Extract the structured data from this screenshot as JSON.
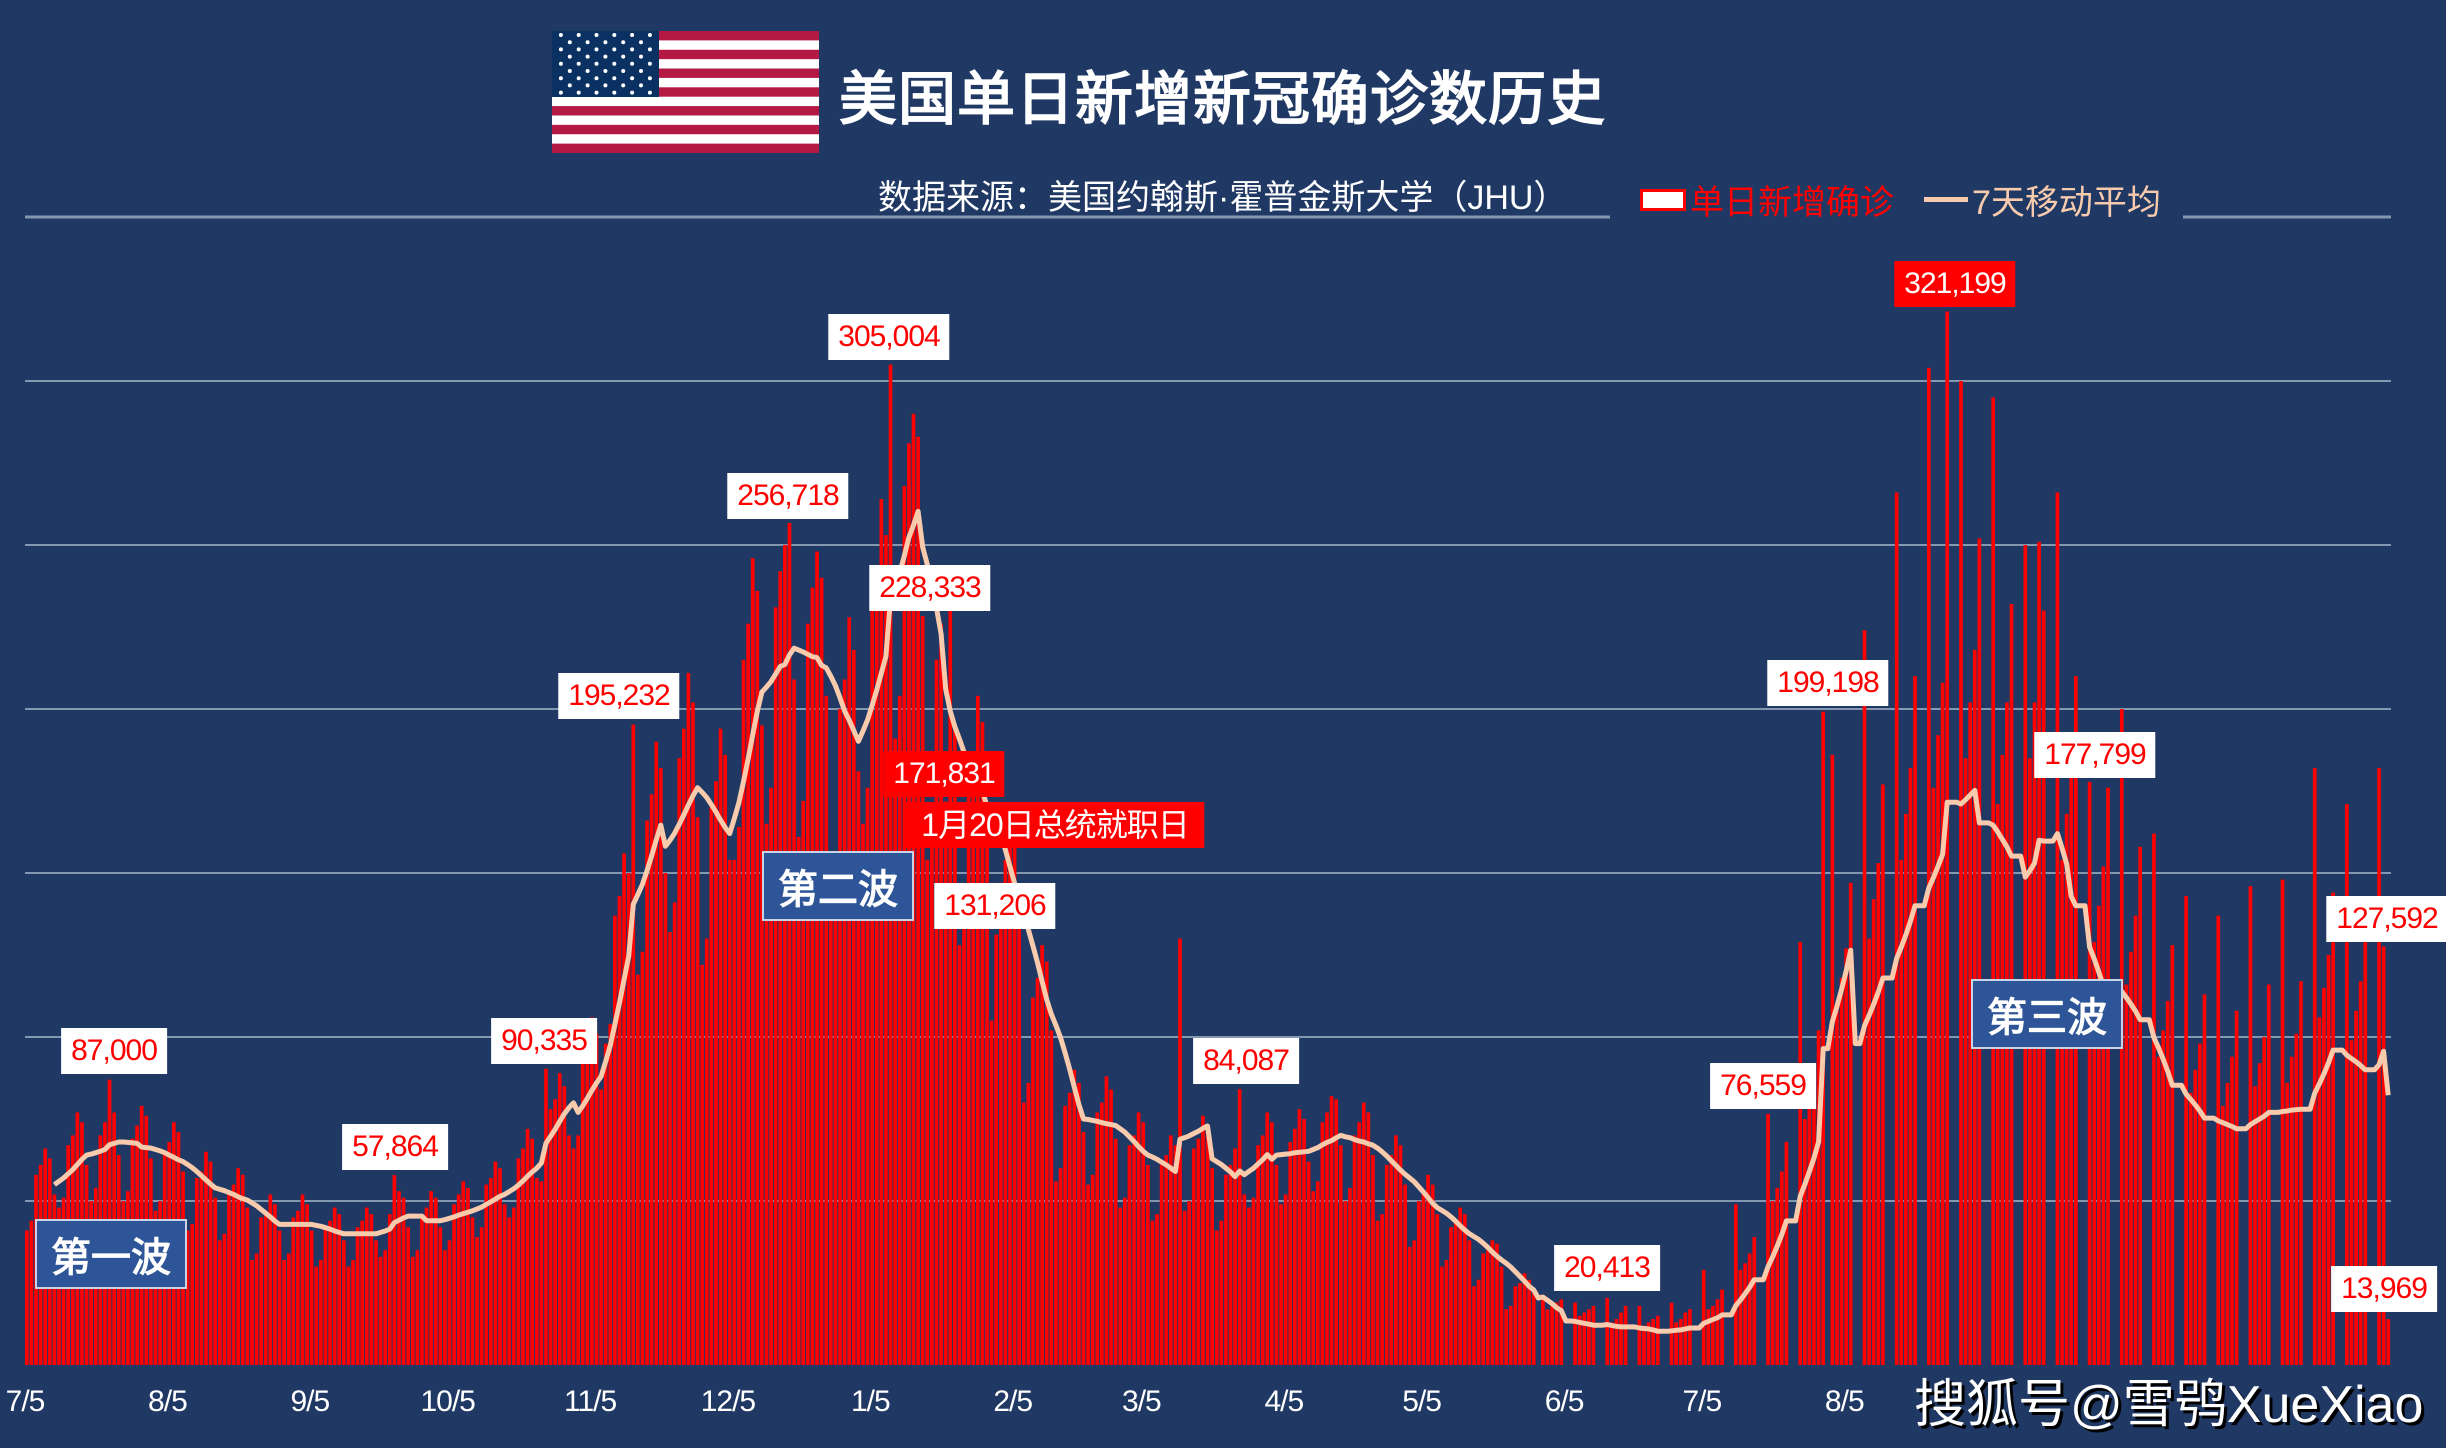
{
  "title": "美国单日新增新冠确诊数历史",
  "subtitle": "数据来源：美国约翰斯·霍普金斯大学（JHU）",
  "watermark": "搜狐号@雪鸮XueXiao",
  "flag": "us-flag",
  "colors": {
    "background": "#203864",
    "bars": "#ff0000",
    "moving_average": "#f8cbad",
    "grid": "#8497b0",
    "wave_box": "#2e5597"
  },
  "chart_data": {
    "type": "bar",
    "title": "美国单日新增新冠确诊数历史",
    "legend": {
      "position": "top-right",
      "items": [
        {
          "name": "单日新增确诊",
          "kind": "bar"
        },
        {
          "name": "7天移动平均",
          "kind": "line"
        }
      ]
    },
    "ylim": [
      0,
      350000
    ],
    "y_grid_step": 50000,
    "grid": true,
    "x_ticks": [
      {
        "label": "7/5",
        "day": 0
      },
      {
        "label": "8/5",
        "day": 31
      },
      {
        "label": "9/5",
        "day": 62
      },
      {
        "label": "10/5",
        "day": 92
      },
      {
        "label": "11/5",
        "day": 123
      },
      {
        "label": "12/5",
        "day": 153
      },
      {
        "label": "1/5",
        "day": 184
      },
      {
        "label": "2/5",
        "day": 215
      },
      {
        "label": "3/5",
        "day": 243
      },
      {
        "label": "4/5",
        "day": 274
      },
      {
        "label": "5/5",
        "day": 304
      },
      {
        "label": "6/5",
        "day": 335
      },
      {
        "label": "7/5",
        "day": 365
      },
      {
        "label": "8/5",
        "day": 396
      }
    ],
    "series": [
      {
        "name": "单日新增确诊",
        "type": "bar",
        "values": [
          41000,
          44000,
          58000,
          61000,
          66000,
          63000,
          52000,
          48000,
          51000,
          67000,
          70000,
          77000,
          74000,
          61000,
          50000,
          54000,
          70000,
          74000,
          87000,
          77000,
          64000,
          50000,
          53000,
          69000,
          73000,
          79000,
          76000,
          63000,
          47000,
          50000,
          65000,
          68000,
          74000,
          71000,
          59000,
          41000,
          43000,
          57000,
          59000,
          65000,
          62000,
          51000,
          38000,
          40000,
          53000,
          55000,
          60000,
          58000,
          48000,
          32000,
          34000,
          45000,
          47000,
          52000,
          49000,
          41000,
          32000,
          34000,
          45000,
          47000,
          52000,
          49000,
          41000,
          30000,
          32000,
          42000,
          44000,
          48000,
          46000,
          38000,
          30000,
          32000,
          42000,
          44000,
          48000,
          46000,
          38000,
          33000,
          35000,
          46000,
          57864,
          53000,
          51000,
          42000,
          33000,
          35000,
          46000,
          48000,
          53000,
          51000,
          42000,
          35000,
          38000,
          49000,
          52000,
          56000,
          54000,
          45000,
          39000,
          42000,
          55000,
          57000,
          62000,
          60000,
          49000,
          45000,
          48000,
          63000,
          66000,
          72000,
          69000,
          57000,
          56000,
          90335,
          78000,
          81000,
          89000,
          85000,
          70000,
          66000,
          70000,
          92000,
          97000,
          106000,
          101000,
          84000,
          98000,
          104000,
          137000,
          143000,
          156000,
          150000,
          195232,
          119000,
          126000,
          166000,
          174000,
          190000,
          182000,
          150000,
          132000,
          141000,
          185000,
          194000,
          211000,
          202000,
          167000,
          122000,
          130000,
          170000,
          178000,
          194000,
          186000,
          154000,
          154000,
          164000,
          215000,
          226000,
          246000,
          236000,
          195000,
          165000,
          176000,
          231000,
          242000,
          250000,
          256718,
          209000,
          161000,
          172000,
          226000,
          237000,
          248000,
          240000,
          204000,
          143000,
          152000,
          200000,
          209000,
          228000,
          218000,
          181000,
          165000,
          176000,
          231000,
          242000,
          264000,
          253000,
          305004,
          191000,
          204000,
          268000,
          281000,
          290000,
          283000,
          228333,
          154000,
          164000,
          215000,
          226000,
          171831,
          236000,
          195000,
          128000,
          136000,
          179000,
          187000,
          204000,
          196000,
          162000,
          105000,
          131206,
          147000,
          154000,
          168000,
          161000,
          133000,
          80000,
          86000,
          112000,
          118000,
          128000,
          123000,
          102000,
          56000,
          60000,
          79000,
          83000,
          90000,
          86000,
          71000,
          55000,
          58000,
          77000,
          80000,
          88000,
          84000,
          69000,
          48000,
          51000,
          67000,
          70000,
          77000,
          74000,
          61000,
          44000,
          46000,
          61000,
          64000,
          70000,
          67000,
          130000,
          47000,
          50000,
          66000,
          69000,
          76000,
          72000,
          60000,
          41000,
          44000,
          58000,
          61000,
          66000,
          84087,
          52000,
          48000,
          51000,
          67000,
          70000,
          77000,
          74000,
          61000,
          49000,
          52000,
          68000,
          72000,
          78000,
          75000,
          62000,
          53000,
          56000,
          74000,
          77000,
          82000,
          81000,
          67000,
          50000,
          54000,
          70000,
          74000,
          80000,
          77000,
          64000,
          44000,
          46000,
          61000,
          64000,
          70000,
          67000,
          55000,
          36000,
          38000,
          50000,
          53000,
          58000,
          55000,
          46000,
          30000,
          32000,
          42000,
          44000,
          48000,
          46000,
          38000,
          24000,
          26000,
          34000,
          35000,
          38000,
          37000,
          30000,
          17000,
          18000,
          24000,
          25000,
          28000,
          26000,
          22000,
          0,
          20000,
          17000,
          18000,
          19000,
          20000,
          0,
          0,
          19000,
          15000,
          16000,
          17000,
          18000,
          0,
          0,
          20413,
          13000,
          14000,
          16000,
          18000,
          0,
          0,
          18000,
          12000,
          13000,
          14000,
          15000,
          0,
          0,
          19000,
          13000,
          14000,
          16000,
          17000,
          0,
          0,
          29000,
          17000,
          18000,
          20000,
          23000,
          0,
          0,
          49000,
          29000,
          31000,
          34000,
          39000,
          0,
          0,
          76559,
          50000,
          54000,
          59000,
          68000,
          0,
          0,
          129000,
          75000,
          82000,
          88000,
          102000,
          199198,
          0,
          186000,
          108000,
          118000,
          127000,
          147000,
          0,
          0,
          224000,
          130000,
          142000,
          153000,
          177000,
          0,
          0,
          266000,
          154000,
          168000,
          182000,
          210000,
          0,
          0,
          304000,
          176000,
          192000,
          208000,
          321199,
          0,
          0,
          300000,
          185000,
          202000,
          218000,
          252000,
          0,
          0,
          295000,
          171000,
          186000,
          202000,
          232000,
          0,
          0,
          250000,
          185000,
          202000,
          251000,
          230000,
          0,
          0,
          266000,
          154000,
          168000,
          182000,
          210000,
          0,
          0,
          177799,
          129000,
          140000,
          152000,
          176000,
          0,
          0,
          200000,
          116000,
          126000,
          137000,
          158000,
          0,
          0,
          162000,
          94000,
          102000,
          111000,
          128000,
          0,
          0,
          143000,
          83000,
          90000,
          98000,
          113000,
          0,
          0,
          137000,
          79000,
          86000,
          94000,
          108000,
          0,
          0,
          146000,
          85000,
          92000,
          100000,
          116000,
          0,
          0,
          148000,
          86000,
          94000,
          101000,
          117000,
          0,
          0,
          182000,
          106000,
          115000,
          125000,
          144000,
          0,
          0,
          171000,
          99000,
          108000,
          117000,
          135000,
          0,
          0,
          182000,
          127592,
          13969
        ]
      },
      {
        "name": "7天移动平均",
        "type": "line",
        "window": 7
      }
    ],
    "annotations": [
      {
        "text": "87,000",
        "day": 18,
        "value": 87000,
        "style": "white"
      },
      {
        "text": "57,864",
        "day": 80,
        "value": 57864,
        "style": "white"
      },
      {
        "text": "90,335",
        "day": 113,
        "value": 90335,
        "style": "white"
      },
      {
        "text": "195,232",
        "day": 132,
        "value": 195232,
        "style": "white"
      },
      {
        "text": "256,718",
        "day": 166,
        "value": 256718,
        "style": "white"
      },
      {
        "text": "305,004",
        "day": 188,
        "value": 305004,
        "style": "white"
      },
      {
        "text": "228,333",
        "day": 195,
        "value": 228333,
        "style": "white"
      },
      {
        "text": "171,831",
        "day": 200,
        "value": 171831,
        "style": "red"
      },
      {
        "text": "131,206",
        "day": 211,
        "value": 131206,
        "style": "white"
      },
      {
        "text": "84,087",
        "day": 264,
        "value": 84087,
        "style": "white"
      },
      {
        "text": "20,413",
        "day": 344,
        "value": 20413,
        "style": "white"
      },
      {
        "text": "76,559",
        "day": 379,
        "value": 76559,
        "style": "white"
      },
      {
        "text": "199,198",
        "day": 391,
        "value": 199198,
        "style": "white"
      },
      {
        "text": "321,199",
        "day": 418,
        "value": 321199,
        "style": "red"
      },
      {
        "text": "177,799",
        "day": 449,
        "value": 177799,
        "style": "white"
      },
      {
        "text": "127,592",
        "day": 513,
        "value": 127592,
        "style": "white"
      },
      {
        "text": "13,969",
        "day": 514,
        "value": 13969,
        "style": "white"
      }
    ],
    "event": {
      "text": "1月20日总统就职日",
      "day": 199
    },
    "waves": [
      "第一波",
      "第二波",
      "第三波"
    ]
  }
}
